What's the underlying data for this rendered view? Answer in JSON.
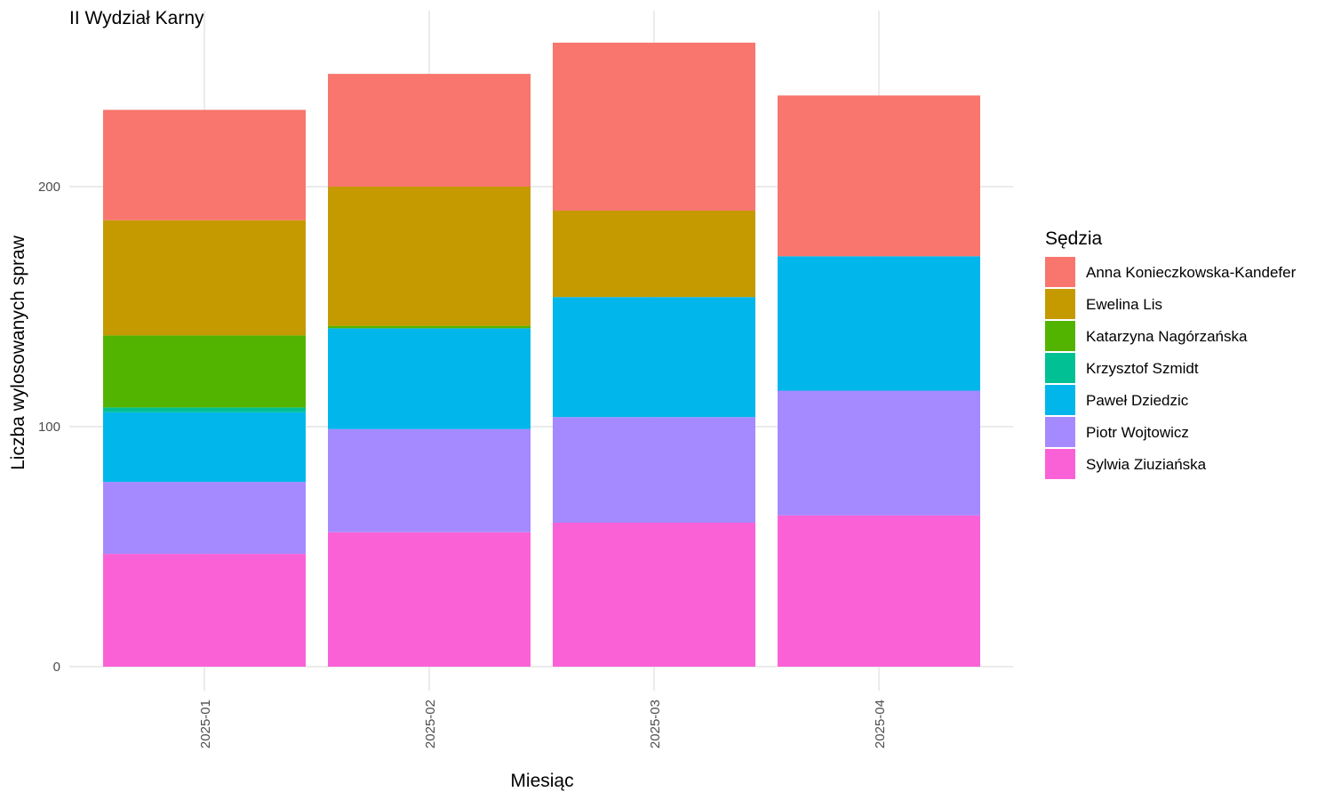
{
  "chart_data": {
    "type": "bar",
    "stacked": true,
    "title": "II Wydział Karny",
    "xlabel": "Miesiąc",
    "ylabel": "Liczba wylosowanych spraw",
    "ylim": [
      0,
      275
    ],
    "yticks": [
      0,
      100,
      200
    ],
    "grid": true,
    "legend_title": "Sędzia",
    "legend_position": "right",
    "categories": [
      "2025-01",
      "2025-02",
      "2025-03",
      "2025-04"
    ],
    "series": [
      {
        "name": "Sylwia Ziuziańska",
        "color": "#FB61D7",
        "values": [
          47,
          56,
          60,
          63
        ]
      },
      {
        "name": "Piotr Wojtowicz",
        "color": "#A58AFF",
        "values": [
          30,
          43,
          44,
          52
        ]
      },
      {
        "name": "Paweł Dziedzic",
        "color": "#00B6EB",
        "values": [
          29,
          42,
          50,
          56
        ]
      },
      {
        "name": "Krzysztof Szmidt",
        "color": "#00C094",
        "values": [
          2,
          0,
          0,
          0
        ]
      },
      {
        "name": "Katarzyna Nagórzańska",
        "color": "#53B400",
        "values": [
          30,
          1,
          0,
          0
        ]
      },
      {
        "name": "Ewelina Lis",
        "color": "#C49A00",
        "values": [
          48,
          58,
          36,
          0
        ]
      },
      {
        "name": "Anna Konieczkowska-Kandefer",
        "color": "#F8766D",
        "values": [
          46,
          47,
          70,
          67
        ]
      }
    ],
    "legend_order": [
      "Anna Konieczkowska-Kandefer",
      "Ewelina Lis",
      "Katarzyna Nagórzańska",
      "Krzysztof Szmidt",
      "Paweł Dziedzic",
      "Piotr Wojtowicz",
      "Sylwia Ziuziańska"
    ]
  }
}
